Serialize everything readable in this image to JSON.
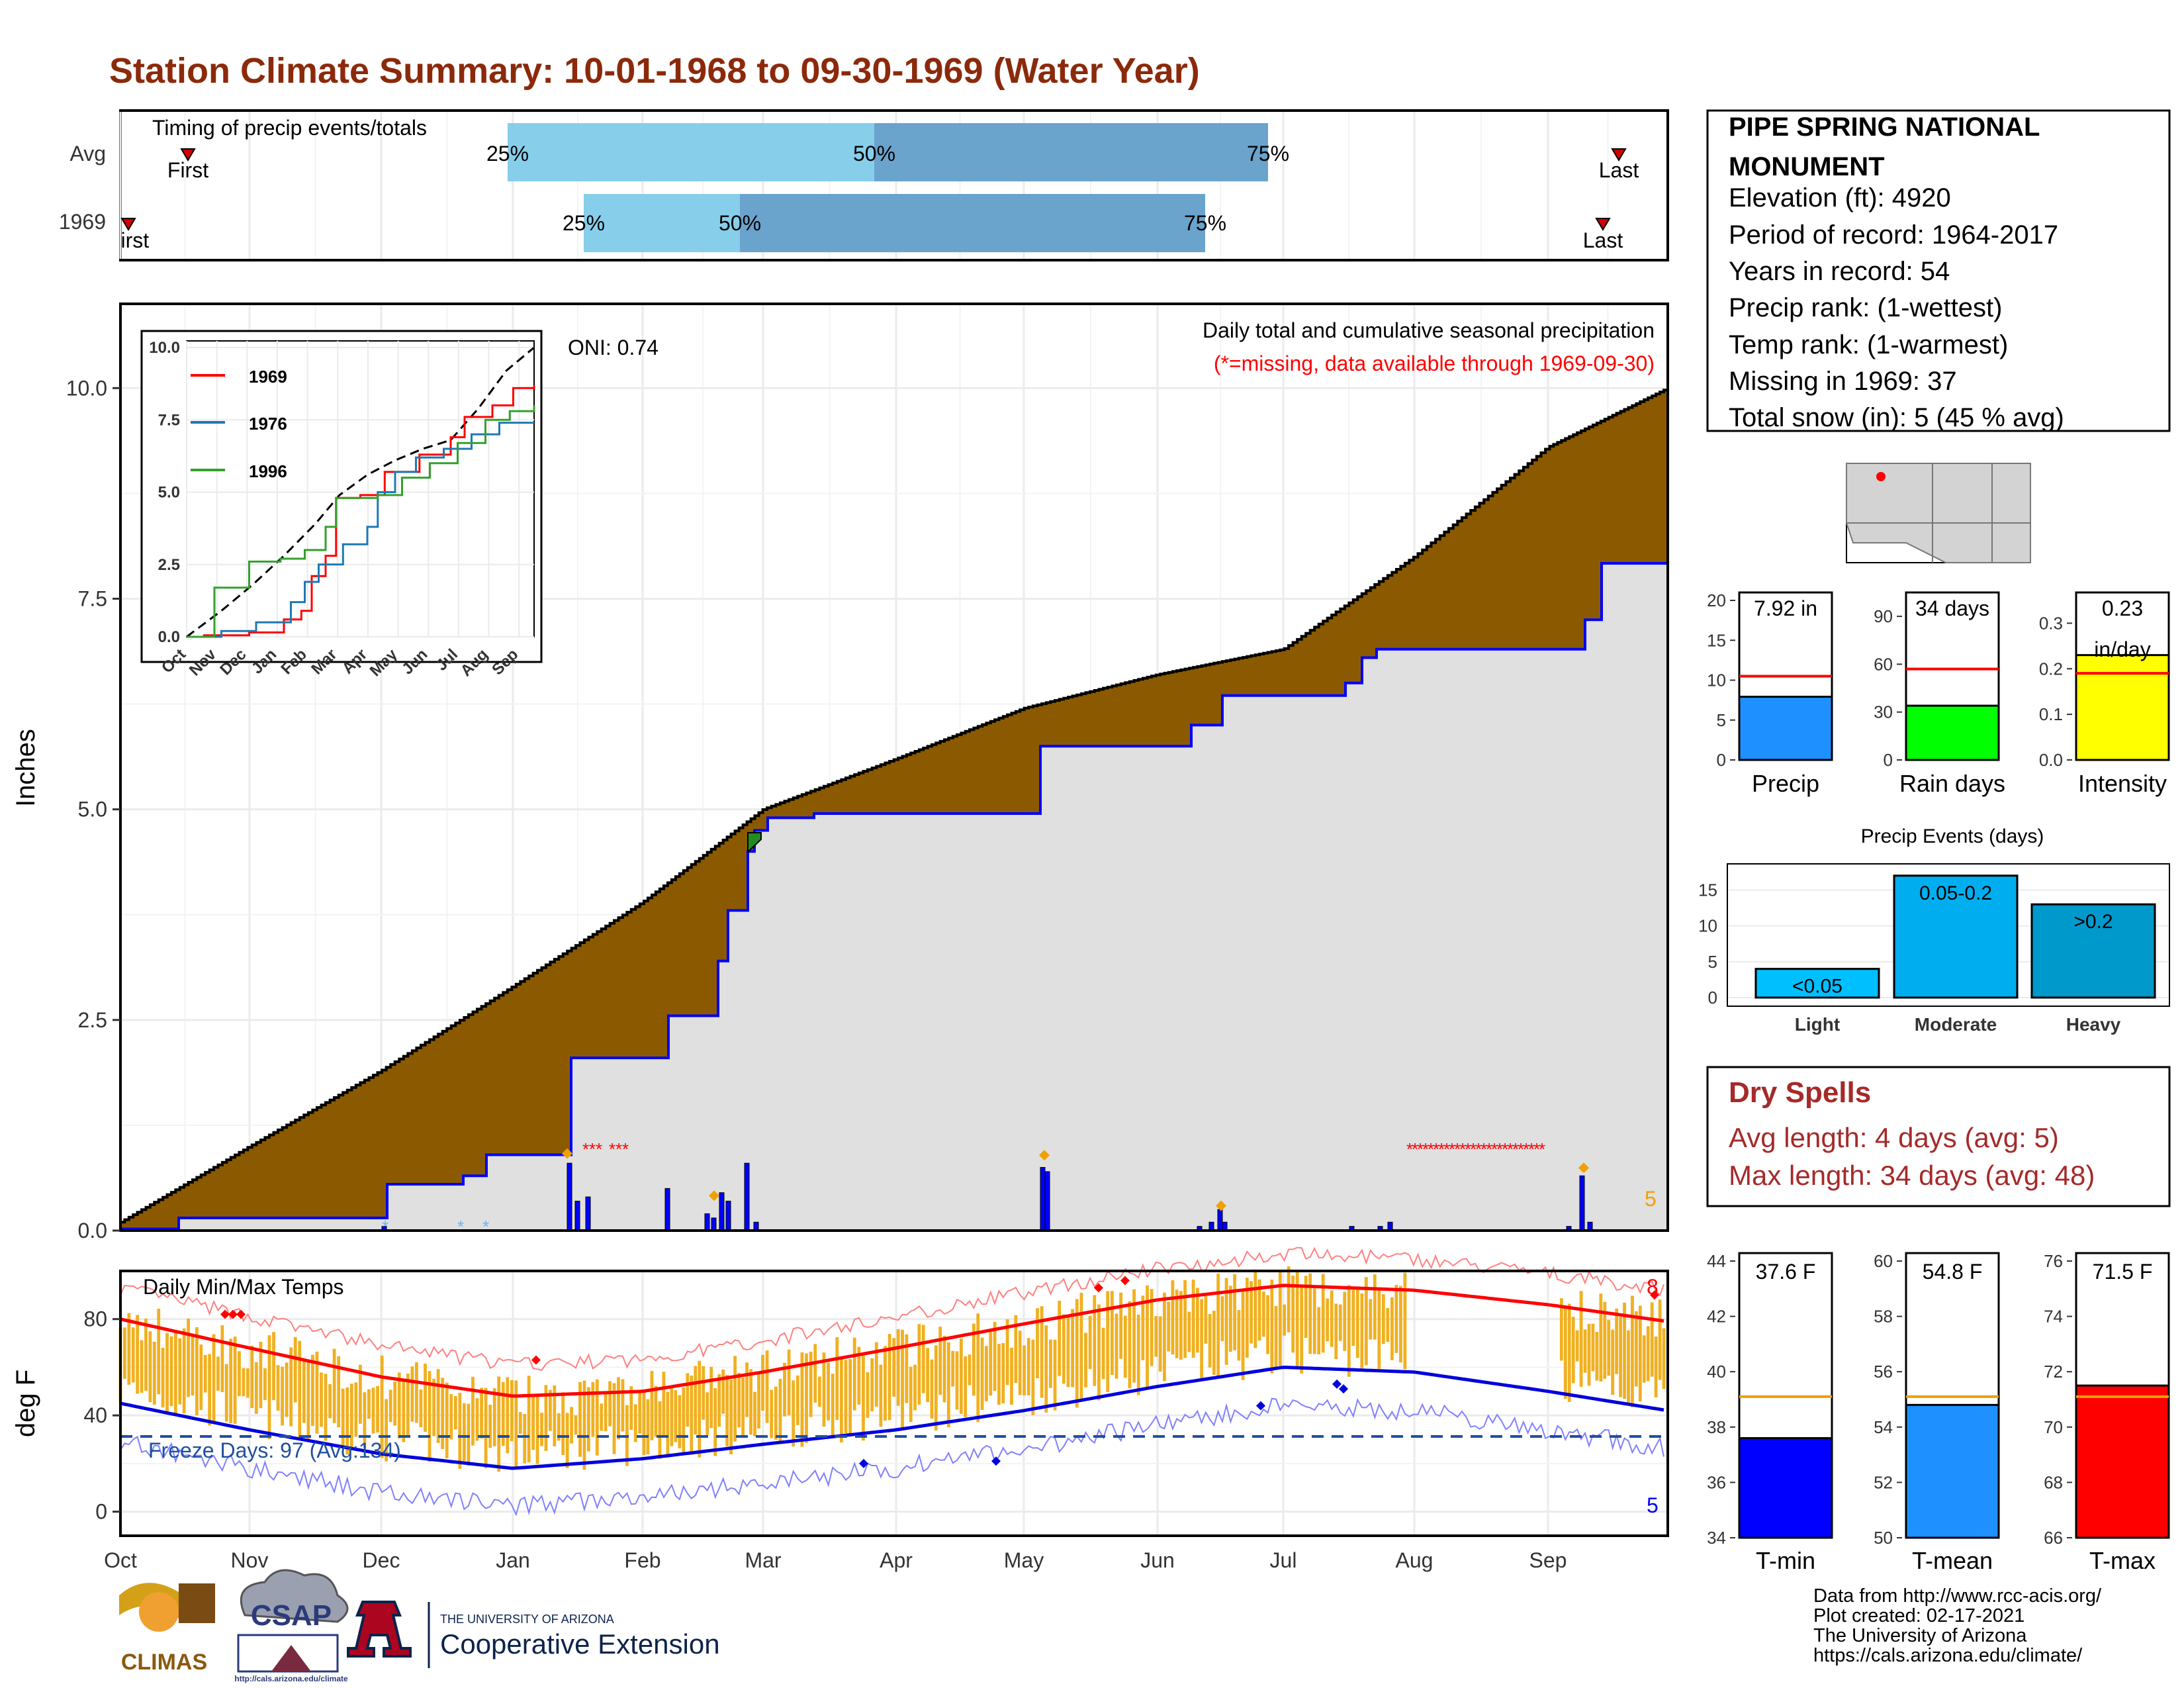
{
  "title": "Station Climate Summary: 10-01-1968 to 09-30-1969 (Water Year)",
  "colors": {
    "title": "#8b2a0b",
    "brown": "#8b5a00",
    "blue": "#0000ff",
    "gray": "#e0e0e0",
    "red": "#ff0000",
    "orange": "#f0b020",
    "light_blue": "#87ceeb",
    "mid_blue": "#6aa3cc",
    "dark_red": "#a52a2a"
  },
  "timing": {
    "title": "Timing of precip events/totals",
    "rows": [
      {
        "name": "Avg",
        "q25": "25%",
        "q50": "50%",
        "q75": "75%",
        "first": "First",
        "last": "Last"
      },
      {
        "name": "1969",
        "q25": "25%",
        "q50": "50%",
        "q75": "75%",
        "first": "First",
        "last": "Last"
      }
    ]
  },
  "precip": {
    "ylabel": "Inches",
    "y_ticks": [
      "0.0",
      "2.5",
      "5.0",
      "7.5",
      "10.0"
    ],
    "title": "Daily total and cumulative seasonal precipitation",
    "missing_note": "(*=missing, data available through 1969-09-30)",
    "oni": "ONI: 0.74",
    "snow_count": "5"
  },
  "inset": {
    "y_ticks": [
      "0.0",
      "2.5",
      "5.0",
      "7.5",
      "10.0"
    ],
    "x_ticks": [
      "Oct",
      "Nov",
      "Dec",
      "Jan",
      "Feb",
      "Mar",
      "Apr",
      "May",
      "Jun",
      "Jul",
      "Aug",
      "Sep"
    ],
    "legend": [
      {
        "name": "1969",
        "color": "#ff0000"
      },
      {
        "name": "1976",
        "color": "#1f78b4"
      },
      {
        "name": "1996",
        "color": "#33a02c"
      }
    ]
  },
  "temps": {
    "ylabel": "deg F",
    "title": "Daily Min/Max Temps",
    "y_ticks": [
      "0",
      "40",
      "80"
    ],
    "freeze": "Freeze Days: 97 (Avg:134)",
    "max_count": "8",
    "min_count": "5"
  },
  "months": [
    "Oct",
    "Nov",
    "Dec",
    "Jan",
    "Feb",
    "Mar",
    "Apr",
    "May",
    "Jun",
    "Jul",
    "Aug",
    "Sep"
  ],
  "station": {
    "name": "PIPE SPRING NATIONAL MONUMENT",
    "elevation": "Elevation (ft): 4920",
    "period": "Period of record: 1964-2017",
    "years": "Years in record: 54",
    "precip_rank": "Precip rank:  (1-wettest)",
    "temp_rank": "Temp rank:  (1-warmest)",
    "missing": "Missing in 1969: 37",
    "snow": "Total snow (in): 5 (45 % avg)"
  },
  "mini_bars": [
    {
      "label": "Precip",
      "value_label": "7.92 in",
      "value": 7.92,
      "avg": 10.5,
      "max": 20,
      "ticks": [
        "0",
        "5",
        "10",
        "15",
        "20"
      ],
      "color": "#1e90ff"
    },
    {
      "label": "Rain days",
      "value_label": "34 days",
      "value": 34,
      "avg": 57,
      "max": 100,
      "ticks": [
        "0",
        "30",
        "60",
        "90"
      ],
      "color": "#00ff00"
    },
    {
      "label": "Intensity",
      "value_label": "0.23",
      "value_label2": "in/day",
      "value": 0.23,
      "avg": 0.19,
      "max": 0.35,
      "ticks": [
        "0.0",
        "0.1",
        "0.2",
        "0.3"
      ],
      "color": "#ffff00"
    }
  ],
  "events": {
    "title": "Precip Events (days)",
    "ticks": [
      "0",
      "5",
      "10",
      "15"
    ],
    "bars": [
      {
        "category": "Light",
        "label": "<0.05",
        "value": 4,
        "color": "#00bfff"
      },
      {
        "category": "Moderate",
        "label": "0.05-0.2",
        "value": 17,
        "color": "#00aeef"
      },
      {
        "category": "Heavy",
        "label": ">0.2",
        "value": 13,
        "color": "#0099cc"
      }
    ]
  },
  "dry_spells": {
    "title": "Dry Spells",
    "avg": "Avg length: 4 days (avg: 5)",
    "max": "Max length: 34 days (avg: 48)"
  },
  "temp_bars": [
    {
      "label": "T-min",
      "value_label": "37.6 F",
      "value": 37.6,
      "avg": 39.1,
      "min": 34,
      "max": 44,
      "ticks": [
        "34",
        "36",
        "38",
        "40",
        "42",
        "44"
      ],
      "color": "#0000ff"
    },
    {
      "label": "T-mean",
      "value_label": "54.8 F",
      "value": 54.8,
      "avg": 55.1,
      "min": 50,
      "max": 60,
      "ticks": [
        "50",
        "52",
        "54",
        "56",
        "58",
        "60"
      ],
      "color": "#1e90ff"
    },
    {
      "label": "T-max",
      "value_label": "71.5 F",
      "value": 71.5,
      "avg": 71.1,
      "min": 66,
      "max": 76,
      "ticks": [
        "66",
        "68",
        "70",
        "72",
        "74",
        "76"
      ],
      "color": "#ff0000"
    }
  ],
  "footer": {
    "lines": [
      "Data from http://www.rcc-acis.org/",
      "Plot created: 02-17-2021",
      "The University of Arizona",
      "https://cals.arizona.edu/climate/"
    ],
    "logo_climas": "CLIMAS",
    "logo_csap": "CSAP",
    "logo_csap_url": "http://cals.arizona.edu/climate",
    "ua_small": "THE UNIVERSITY OF ARIZONA",
    "ua_big": "Cooperative Extension"
  },
  "chart_data": [
    {
      "type": "area",
      "title": "Daily total and cumulative seasonal precipitation",
      "ylabel": "Inches",
      "ylim": [
        0,
        11
      ],
      "x": [
        "Oct",
        "Nov",
        "Dec",
        "Jan",
        "Feb",
        "Mar",
        "Apr",
        "May",
        "Jun",
        "Jul",
        "Aug",
        "Sep",
        "Oct"
      ],
      "series": [
        {
          "name": "avg_cumulative",
          "values": [
            0.1,
            1.0,
            1.9,
            2.9,
            3.9,
            5.0,
            5.6,
            6.2,
            6.6,
            6.9,
            8.0,
            9.3,
            10.0
          ]
        },
        {
          "name": "1969_cumulative",
          "values": [
            0.0,
            0.1,
            0.5,
            0.8,
            2.1,
            4.9,
            4.9,
            5.7,
            6.3,
            6.9,
            6.9,
            7.9,
            7.92
          ]
        }
      ]
    },
    {
      "type": "line",
      "title": "Daily Min/Max Temps",
      "ylabel": "deg F",
      "ylim": [
        -10,
        100
      ],
      "x": [
        "Oct",
        "Nov",
        "Dec",
        "Jan",
        "Feb",
        "Mar",
        "Apr",
        "May",
        "Jun",
        "Jul",
        "Aug",
        "Sep",
        "Oct"
      ],
      "series": [
        {
          "name": "avg_max",
          "values": [
            80,
            68,
            56,
            48,
            50,
            58,
            68,
            78,
            88,
            94,
            92,
            86,
            79
          ]
        },
        {
          "name": "avg_min",
          "values": [
            45,
            34,
            24,
            18,
            22,
            28,
            34,
            42,
            52,
            60,
            58,
            50,
            42
          ]
        }
      ]
    }
  ]
}
